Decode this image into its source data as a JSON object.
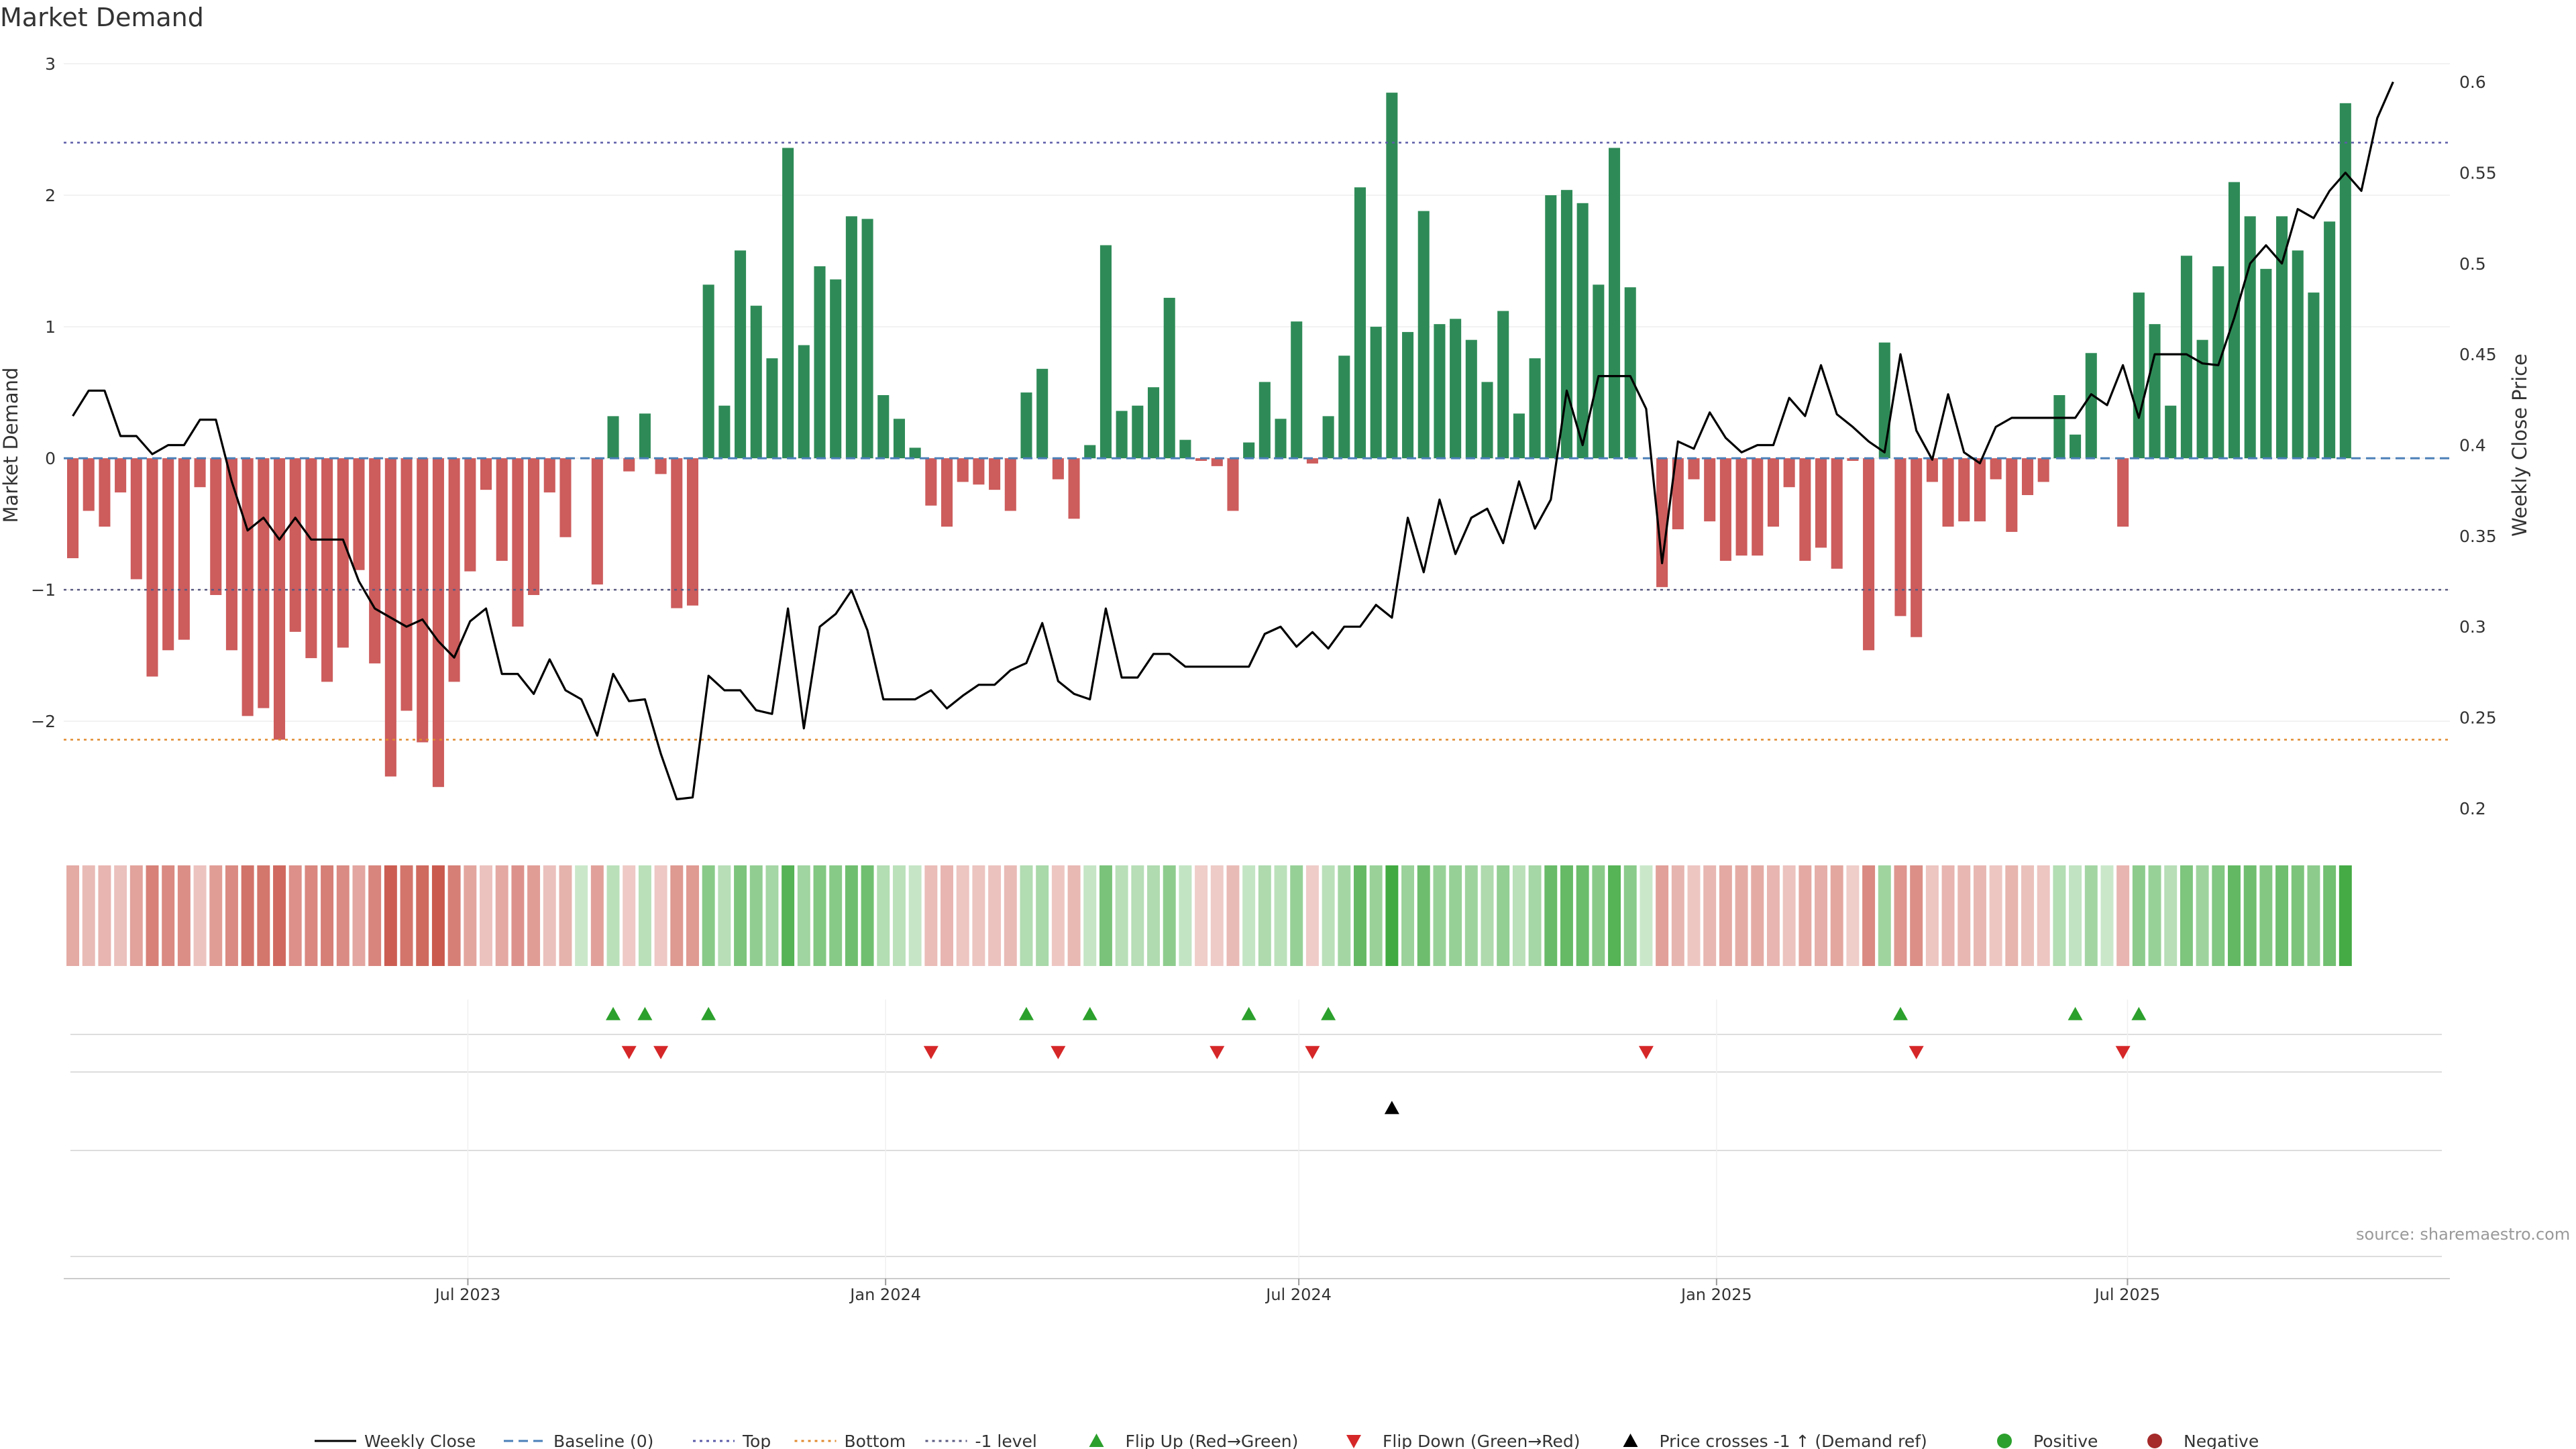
{
  "colors": {
    "positive_bar": "#2e8b57",
    "negative_bar": "#cd5c5c",
    "price_line": "#000000",
    "baseline": "#4a7fb8",
    "top_line": "#5b5ba8",
    "bottom_line": "#e08a2e",
    "minus_one_line": "#5a5a82",
    "flip_up": "#2ca02c",
    "flip_down": "#d62728",
    "cross_marker": "#000000",
    "positive_dot": "#2ca02c",
    "negative_dot": "#a52a2a"
  },
  "chart_data": {
    "type": "bar",
    "title": "Market Demand",
    "source": "source: sharemaestro.com",
    "ylabel": "Market Demand",
    "y2label": "Weekly Close Price",
    "ylim": [
      -2.8,
      3.0
    ],
    "y2lim": [
      0.19,
      0.61
    ],
    "yticks": [
      3,
      2,
      1,
      0,
      -1,
      -2
    ],
    "ytick_labels": [
      "3",
      "2",
      "1",
      "0",
      "−1",
      "−2"
    ],
    "y2ticks": [
      0.6,
      0.55,
      0.5,
      0.45,
      0.4,
      0.35,
      0.3,
      0.25,
      0.2
    ],
    "y2tick_labels": [
      "0.6",
      "0.55",
      "0.5",
      "0.45",
      "0.4",
      "0.35",
      "0.3",
      "0.25",
      "0.2"
    ],
    "x_start": "2023-01-08",
    "x_end": "2025-11-16",
    "x_step_days": 7,
    "x_range": [
      "2023-01-04",
      "2025-11-20"
    ],
    "xticks": [
      "2023-07-01",
      "2024-01-01",
      "2024-07-01",
      "2025-01-01",
      "2025-07-01"
    ],
    "xtick_labels": [
      "Jul 2023",
      "Jan 2024",
      "Jul 2024",
      "Jan 2025",
      "Jul 2025"
    ],
    "reference_lines": {
      "top": 2.4,
      "bottom": -2.14,
      "minus_one": -1.0,
      "baseline": 0
    },
    "demand": [
      -0.76,
      -0.4,
      -0.52,
      -0.26,
      -0.92,
      -1.66,
      -1.46,
      -1.38,
      -0.22,
      -1.04,
      -1.46,
      -1.96,
      -1.9,
      -2.14,
      -1.32,
      -1.52,
      -1.7,
      -1.44,
      -0.85,
      -1.56,
      -2.42,
      -1.92,
      -2.16,
      -2.5,
      -1.7,
      -0.86,
      -0.24,
      -0.78,
      -1.28,
      -1.04,
      -0.26,
      -0.6,
      0,
      -0.96,
      0.32,
      -0.1,
      0.34,
      -0.12,
      -1.14,
      -1.12,
      1.32,
      0.4,
      1.58,
      1.16,
      0.76,
      2.36,
      0.86,
      1.46,
      1.36,
      1.84,
      1.82,
      0.48,
      0.3,
      0.08,
      -0.36,
      -0.52,
      -0.18,
      -0.2,
      -0.24,
      -0.4,
      0.5,
      0.68,
      -0.16,
      -0.46,
      0.1,
      1.62,
      0.36,
      0.4,
      0.54,
      1.22,
      0.14,
      -0.02,
      -0.06,
      -0.4,
      0.12,
      0.58,
      0.3,
      1.04,
      -0.04,
      0.32,
      0.78,
      2.06,
      1.0,
      2.78,
      0.96,
      1.88,
      1.02,
      1.06,
      0.9,
      0.58,
      1.12,
      0.34,
      0.76,
      2.0,
      2.04,
      1.94,
      1.32,
      2.36,
      1.3,
      0,
      -0.98,
      -0.54,
      -0.16,
      -0.48,
      -0.78,
      -0.74,
      -0.74,
      -0.52,
      -0.22,
      -0.78,
      -0.68,
      -0.84,
      -0.02,
      -1.46,
      0.88,
      -1.2,
      -1.36,
      -0.18,
      -0.52,
      -0.48,
      -0.48,
      -0.16,
      -0.56,
      -0.28,
      -0.18,
      0.48,
      0.18,
      0.8,
      0,
      -0.52,
      1.26,
      1.02,
      0.4,
      1.54,
      0.9,
      1.46,
      2.1,
      1.84,
      1.44,
      1.84,
      1.58,
      1.26,
      1.8,
      2.7
    ],
    "close": [
      0.416,
      0.43,
      0.43,
      0.405,
      0.405,
      0.395,
      0.4,
      0.4,
      0.414,
      0.414,
      0.38,
      0.353,
      0.36,
      0.348,
      0.36,
      0.348,
      0.348,
      0.348,
      0.325,
      0.31,
      0.305,
      0.3,
      0.304,
      0.292,
      0.283,
      0.303,
      0.31,
      0.274,
      0.274,
      0.263,
      0.282,
      0.265,
      0.26,
      0.24,
      0.274,
      0.259,
      0.26,
      0.23,
      0.205,
      0.206,
      0.273,
      0.265,
      0.265,
      0.254,
      0.252,
      0.31,
      0.244,
      0.3,
      0.307,
      0.32,
      0.298,
      0.26,
      0.26,
      0.26,
      0.265,
      0.255,
      0.262,
      0.268,
      0.268,
      0.276,
      0.28,
      0.302,
      0.27,
      0.263,
      0.26,
      0.31,
      0.272,
      0.272,
      0.285,
      0.285,
      0.278,
      0.278,
      0.278,
      0.278,
      0.278,
      0.296,
      0.3,
      0.289,
      0.297,
      0.288,
      0.3,
      0.3,
      0.312,
      0.305,
      0.36,
      0.33,
      0.37,
      0.34,
      0.36,
      0.365,
      0.346,
      0.38,
      0.354,
      0.37,
      0.43,
      0.4,
      0.438,
      0.438,
      0.438,
      0.42,
      0.335,
      0.402,
      0.398,
      0.418,
      0.404,
      0.396,
      0.4,
      0.4,
      0.426,
      0.416,
      0.444,
      0.417,
      0.41,
      0.402,
      0.396,
      0.45,
      0.408,
      0.392,
      0.428,
      0.396,
      0.39,
      0.41,
      0.415,
      0.415,
      0.415,
      0.415,
      0.415,
      0.428,
      0.422,
      0.444,
      0.415,
      0.45,
      0.45,
      0.45,
      0.445,
      0.444,
      0.47,
      0.5,
      0.51,
      0.5,
      0.53,
      0.525,
      0.54,
      0.55,
      0.54,
      0.58,
      0.6
    ]
  },
  "events": {
    "rows": [
      {
        "name": "Flip Up (Red→Green)",
        "weeks": [
          34,
          36,
          40,
          60,
          64,
          74,
          79,
          115,
          126,
          130
        ]
      },
      {
        "name": "Flip Down (Green→Red)",
        "weeks": [
          35,
          37,
          54,
          62,
          72,
          78,
          99,
          116,
          129
        ]
      },
      {
        "name": "Price crosses -1 ↑ (Demand ref)",
        "weeks": [
          83
        ]
      },
      {
        "name": "Positive",
        "weeks": []
      },
      {
        "name": "Negative",
        "weeks": []
      }
    ]
  },
  "legend": [
    {
      "label": "Weekly Close",
      "kind": "solid",
      "color_key": "price_line"
    },
    {
      "label": "Baseline (0)",
      "kind": "dashed",
      "color_key": "baseline"
    },
    {
      "label": "Top",
      "kind": "dotted",
      "color_key": "top_line"
    },
    {
      "label": "Bottom",
      "kind": "dotted",
      "color_key": "bottom_line"
    },
    {
      "label": "-1 level",
      "kind": "dotted",
      "color_key": "minus_one_line"
    },
    {
      "label": "Flip Up (Red→Green)",
      "kind": "tri-up",
      "color_key": "flip_up"
    },
    {
      "label": "Flip Down (Green→Red)",
      "kind": "tri-down",
      "color_key": "flip_down"
    },
    {
      "label": "Price crosses -1 ↑ (Demand ref)",
      "kind": "tri-up",
      "color_key": "cross_marker"
    },
    {
      "label": "Positive",
      "kind": "dot",
      "color_key": "positive_dot"
    },
    {
      "label": "Negative",
      "kind": "dot",
      "color_key": "negative_dot"
    }
  ]
}
